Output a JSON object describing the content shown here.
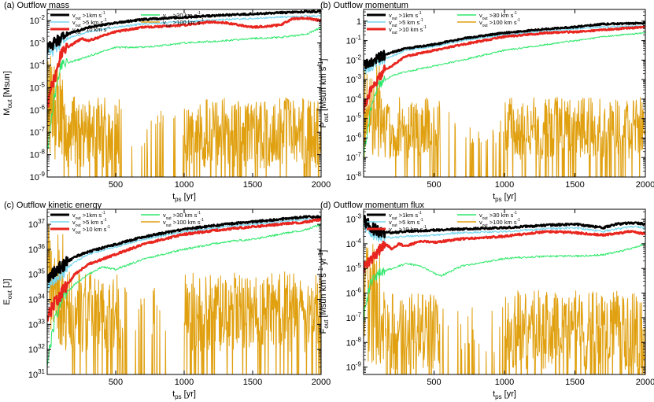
{
  "series_styles": [
    {
      "key": "v1",
      "label": "v_out >1km s^-1",
      "color": "#000000"
    },
    {
      "key": "v5",
      "label": "v_out >5 km s^-1",
      "color": "#7ad7f0"
    },
    {
      "key": "v10",
      "label": "v_out >10 km s^-1",
      "color": "#e8251e"
    },
    {
      "key": "v30",
      "label": "v_out >30 km s^-1",
      "color": "#2ee86b"
    },
    {
      "key": "v100",
      "label": "v_out >100 km s^-1",
      "color": "#e0a010"
    }
  ],
  "chart_data": [
    {
      "type": "line",
      "title": "(a) Outflow mass",
      "xlabel": "t_ps [yr]",
      "ylabel": "M_out [Msun]",
      "xlim": [
        0,
        2000
      ],
      "ylim_log10": [
        -9,
        -1.5
      ],
      "xticks": [
        500,
        1000,
        1500,
        2000
      ],
      "yticks": [
        {
          "exp": -9,
          "label": "10^-9"
        },
        {
          "exp": -8,
          "label": "10^-8"
        },
        {
          "exp": -7,
          "label": "10^-7"
        },
        {
          "exp": -6,
          "label": "10^-6"
        },
        {
          "exp": -5,
          "label": "10^-5"
        },
        {
          "exp": -4,
          "label": "10^-4"
        },
        {
          "exp": -3,
          "label": "10^-3"
        },
        {
          "exp": -2,
          "label": "10^-2"
        }
      ],
      "series": [
        {
          "name": "v1",
          "x": [
            0,
            50,
            100,
            150,
            200,
            300,
            500,
            700,
            1000,
            1300,
            1500,
            1700,
            1900,
            2000
          ],
          "y_log10": [
            -3.3,
            -3.0,
            -2.8,
            -2.6,
            -2.5,
            -2.3,
            -2.1,
            -1.95,
            -1.85,
            -1.75,
            -1.7,
            -1.65,
            -1.6,
            -1.6
          ]
        },
        {
          "name": "v5",
          "x": [
            0,
            50,
            100,
            150,
            200,
            300,
            500,
            700,
            1000,
            1300,
            1500,
            1700,
            1900,
            2000
          ],
          "y_log10": [
            -3.6,
            -3.3,
            -3.0,
            -2.8,
            -2.7,
            -2.5,
            -2.3,
            -2.15,
            -2.05,
            -1.95,
            -1.9,
            -1.85,
            -1.8,
            -1.8
          ]
        },
        {
          "name": "v10",
          "x": [
            0,
            30,
            60,
            100,
            150,
            200,
            250,
            300,
            400,
            500,
            700,
            1000,
            1200,
            1300,
            1500,
            1700,
            1800,
            1900,
            2000
          ],
          "y_log10": [
            -6.0,
            -5.0,
            -4.5,
            -3.5,
            -3.2,
            -3.0,
            -2.8,
            -2.9,
            -2.7,
            -2.5,
            -2.3,
            -2.2,
            -2.05,
            -2.1,
            -2.3,
            -2.2,
            -1.9,
            -1.9,
            -2.0
          ]
        },
        {
          "name": "v30",
          "x": [
            0,
            50,
            100,
            150,
            200,
            300,
            400,
            500,
            700,
            1000,
            1300,
            1500,
            1700,
            1900,
            2000
          ],
          "y_log10": [
            -8.0,
            -5.5,
            -4.0,
            -3.9,
            -3.8,
            -3.6,
            -3.4,
            -3.2,
            -3.2,
            -3.0,
            -2.9,
            -2.8,
            -2.75,
            -2.6,
            -2.3
          ]
        },
        {
          "name": "v100",
          "x": [
            0,
            2000
          ],
          "y_log10": [
            -7.0,
            -7.0
          ],
          "noisy": true
        }
      ]
    },
    {
      "type": "line",
      "title": "(b) Outflow momentum",
      "xlabel": "t_ps [yr]",
      "ylabel": "P_out [Msun km s^-1]",
      "xlim": [
        0,
        2000
      ],
      "ylim_log10": [
        -8,
        0.6
      ],
      "xticks": [
        500,
        1000,
        1500,
        2000
      ],
      "yticks": [
        {
          "exp": -8,
          "label": "10^-8"
        },
        {
          "exp": -7,
          "label": "10^-7"
        },
        {
          "exp": -6,
          "label": "10^-6"
        },
        {
          "exp": -5,
          "label": "10^-5"
        },
        {
          "exp": -4,
          "label": "10^-4"
        },
        {
          "exp": -3,
          "label": "10^-3"
        },
        {
          "exp": -2,
          "label": "10^-2"
        },
        {
          "exp": -1,
          "label": "10^-1"
        },
        {
          "exp": 0,
          "label": "1"
        }
      ],
      "series": [
        {
          "name": "v1",
          "x": [
            0,
            100,
            200,
            300,
            500,
            700,
            1000,
            1300,
            1500,
            1700,
            2000
          ],
          "y_log10": [
            -2.3,
            -1.9,
            -1.6,
            -1.4,
            -1.2,
            -0.9,
            -0.6,
            -0.4,
            -0.3,
            -0.15,
            -0.1
          ]
        },
        {
          "name": "v5",
          "x": [
            0,
            100,
            200,
            300,
            500,
            700,
            1000,
            1300,
            1500,
            1700,
            2000
          ],
          "y_log10": [
            -2.6,
            -2.1,
            -1.8,
            -1.5,
            -1.3,
            -1.0,
            -0.7,
            -0.5,
            -0.4,
            -0.3,
            -0.25
          ]
        },
        {
          "name": "v10",
          "x": [
            0,
            50,
            100,
            150,
            200,
            300,
            500,
            700,
            1000,
            1300,
            1500,
            1700,
            2000
          ],
          "y_log10": [
            -4.5,
            -3.5,
            -3.0,
            -2.5,
            -2.3,
            -1.8,
            -1.5,
            -1.2,
            -0.8,
            -0.6,
            -0.55,
            -0.45,
            -0.3
          ]
        },
        {
          "name": "v30",
          "x": [
            0,
            50,
            100,
            200,
            300,
            500,
            700,
            1000,
            1300,
            1500,
            1700,
            2000
          ],
          "y_log10": [
            -7.0,
            -4.5,
            -3.3,
            -2.8,
            -2.6,
            -2.3,
            -2.0,
            -1.5,
            -1.2,
            -1.0,
            -0.8,
            -0.6
          ]
        },
        {
          "name": "v100",
          "x": [
            0,
            2000
          ],
          "y_log10": [
            -5.5,
            -5.5
          ],
          "noisy": true
        }
      ]
    },
    {
      "type": "line",
      "title": "(c) Outflow kinetic energy",
      "xlabel": "t_ps [yr]",
      "ylabel": "E_out [J]",
      "xlim": [
        0,
        2000
      ],
      "ylim_log10": [
        31,
        37.6
      ],
      "xticks": [
        500,
        1000,
        1500,
        2000
      ],
      "yticks": [
        {
          "exp": 31,
          "label": "10^31"
        },
        {
          "exp": 32,
          "label": "10^32"
        },
        {
          "exp": 33,
          "label": "10^33"
        },
        {
          "exp": 34,
          "label": "10^34"
        },
        {
          "exp": 35,
          "label": "10^35"
        },
        {
          "exp": 36,
          "label": "10^36"
        },
        {
          "exp": 37,
          "label": "10^37"
        }
      ],
      "series": [
        {
          "name": "v1",
          "x": [
            0,
            100,
            200,
            300,
            500,
            700,
            1000,
            1300,
            1500,
            1700,
            1900,
            2000
          ],
          "y_log10": [
            34.8,
            35.3,
            35.7,
            35.9,
            36.2,
            36.5,
            36.8,
            37.0,
            37.1,
            37.2,
            37.3,
            37.3
          ]
        },
        {
          "name": "v5",
          "x": [
            0,
            100,
            200,
            300,
            500,
            700,
            1000,
            1300,
            1500,
            1700,
            1900,
            2000
          ],
          "y_log10": [
            34.5,
            35.0,
            35.5,
            35.8,
            36.1,
            36.4,
            36.7,
            36.9,
            37.0,
            37.1,
            37.2,
            37.2
          ]
        },
        {
          "name": "v10",
          "x": [
            0,
            50,
            100,
            150,
            200,
            300,
            500,
            700,
            1000,
            1300,
            1500,
            1700,
            1900,
            2000
          ],
          "y_log10": [
            33.3,
            33.8,
            34.2,
            34.6,
            35.0,
            35.4,
            35.8,
            36.2,
            36.6,
            36.8,
            36.9,
            37.0,
            37.1,
            37.2
          ]
        },
        {
          "name": "v30",
          "x": [
            0,
            50,
            100,
            200,
            300,
            400,
            500,
            700,
            1000,
            1300,
            1500,
            1700,
            1900,
            2000
          ],
          "y_log10": [
            31.5,
            33.0,
            34.0,
            34.6,
            35.0,
            35.3,
            35.2,
            35.6,
            36.0,
            36.3,
            36.4,
            36.6,
            36.8,
            37.0
          ]
        },
        {
          "name": "v100",
          "x": [
            0,
            2000
          ],
          "y_log10": [
            33.5,
            33.5
          ],
          "noisy": true
        }
      ]
    },
    {
      "type": "line",
      "title": "(d) Outflow momentum flux",
      "xlabel": "t_ps [yr]",
      "ylabel": "F_out [Msun km s^-1 yr^-1]",
      "xlim": [
        0,
        2000
      ],
      "ylim_log10": [
        -9.3,
        -2.6
      ],
      "xticks": [
        500,
        1000,
        1500,
        2000
      ],
      "yticks": [
        {
          "exp": -9,
          "label": "10^-9"
        },
        {
          "exp": -8,
          "label": "10^-8"
        },
        {
          "exp": -7,
          "label": "10^-7"
        },
        {
          "exp": -6,
          "label": "10^-6"
        },
        {
          "exp": -5,
          "label": "10^-5"
        },
        {
          "exp": -4,
          "label": "10^-4"
        },
        {
          "exp": -3,
          "label": "10^-3"
        }
      ],
      "series": [
        {
          "name": "v1",
          "x": [
            0,
            50,
            100,
            200,
            300,
            500,
            700,
            1000,
            1300,
            1500,
            1700,
            1800,
            1900,
            2000
          ],
          "y_log10": [
            -3.0,
            -3.3,
            -3.5,
            -3.55,
            -3.5,
            -3.45,
            -3.4,
            -3.35,
            -3.25,
            -3.2,
            -3.35,
            -3.2,
            -3.15,
            -3.2
          ]
        },
        {
          "name": "v5",
          "x": [
            0,
            50,
            100,
            200,
            300,
            500,
            700,
            1000,
            1300,
            1500,
            1700,
            1900,
            2000
          ],
          "y_log10": [
            -3.2,
            -3.5,
            -3.7,
            -3.75,
            -3.7,
            -3.65,
            -3.55,
            -3.5,
            -3.4,
            -3.35,
            -3.5,
            -3.3,
            -3.35
          ]
        },
        {
          "name": "v10",
          "x": [
            0,
            50,
            100,
            150,
            200,
            250,
            300,
            400,
            500,
            700,
            1000,
            1300,
            1500,
            1700,
            1900,
            2000
          ],
          "y_log10": [
            -5.0,
            -4.6,
            -4.3,
            -4.0,
            -4.2,
            -4.0,
            -4.1,
            -3.9,
            -3.95,
            -3.8,
            -3.7,
            -3.5,
            -3.55,
            -3.65,
            -3.5,
            -3.6
          ]
        },
        {
          "name": "v30",
          "x": [
            0,
            50,
            100,
            200,
            300,
            400,
            500,
            550,
            700,
            1000,
            1300,
            1500,
            1700,
            1900,
            2000
          ],
          "y_log10": [
            -7.0,
            -5.5,
            -5.2,
            -5.0,
            -4.8,
            -4.9,
            -5.2,
            -5.3,
            -4.9,
            -4.6,
            -4.5,
            -4.5,
            -4.45,
            -4.2,
            -4.0
          ]
        },
        {
          "name": "v100",
          "x": [
            0,
            2000
          ],
          "y_log10": [
            -7.5,
            -7.5
          ],
          "noisy": true
        }
      ]
    }
  ]
}
